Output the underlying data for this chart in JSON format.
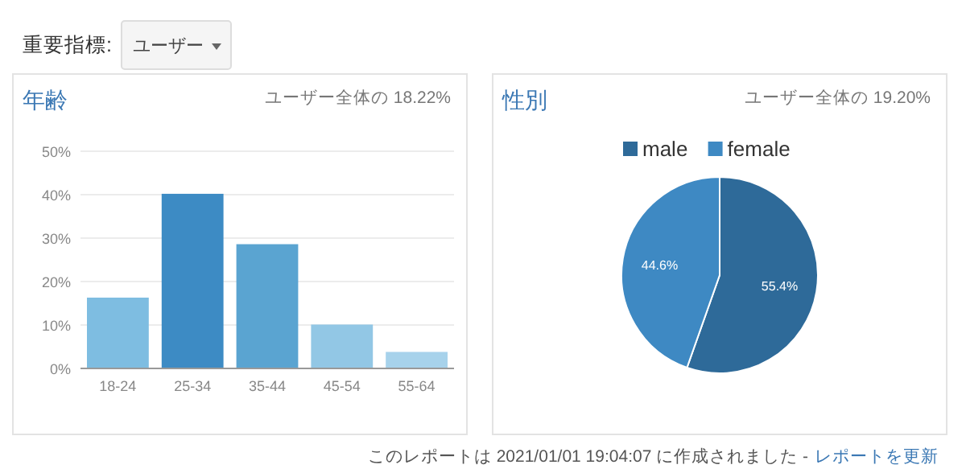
{
  "chart_data": [
    {
      "type": "bar",
      "title": "年齢",
      "subtitle": "ユーザー全体の 18.22%",
      "annotations": [
        "重要指標:",
        "ユーザー"
      ],
      "categories": [
        "18-24",
        "25-34",
        "35-44",
        "45-54",
        "55-64"
      ],
      "values": [
        16.3,
        40.2,
        28.6,
        10.1,
        3.8
      ],
      "colors": [
        "#7ebde1",
        "#3d8bc4",
        "#5aa4d1",
        "#92c7e5",
        "#a7d2eb"
      ],
      "ylim": [
        0,
        50
      ],
      "yticks": [
        {
          "value": 0,
          "label": "0%"
        },
        {
          "value": 10,
          "label": "10%"
        },
        {
          "value": 20,
          "label": "20%"
        },
        {
          "value": 30,
          "label": "30%"
        },
        {
          "value": 40,
          "label": "40%"
        },
        {
          "value": 50,
          "label": "50%"
        }
      ],
      "grid": "y"
    },
    {
      "type": "pie",
      "title": "性別",
      "subtitle": "ユーザー全体の 19.20%",
      "annotations": [
        "このレポートは 2021/01/01 19:04:07 に作成されました -",
        "レポートを更新"
      ],
      "categories": [
        "male",
        "female"
      ],
      "values": [
        55.4,
        44.6
      ],
      "colors": [
        "#2e6a99",
        "#3e89c3"
      ],
      "value_labels": [
        "55.4%",
        "44.6%"
      ],
      "legend": "top"
    }
  ]
}
